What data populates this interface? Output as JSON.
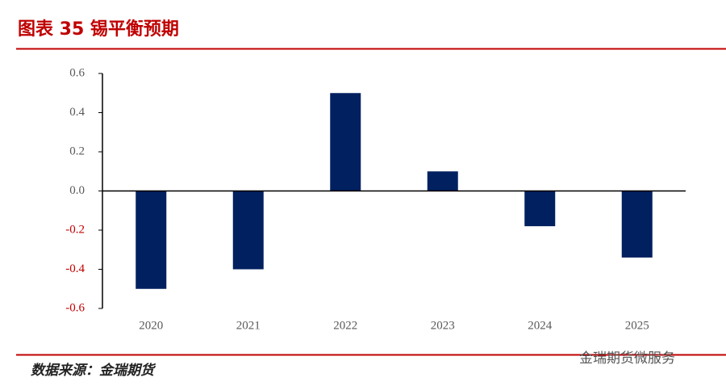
{
  "chart_data": {
    "type": "bar",
    "title": "图表 35 锡平衡预期",
    "categories": [
      "2020",
      "2021",
      "2022",
      "2023",
      "2024",
      "2025"
    ],
    "values": [
      -0.5,
      -0.4,
      0.5,
      0.1,
      -0.18,
      -0.34
    ],
    "color": "#002060",
    "ylim": [
      -0.6,
      0.6
    ],
    "yticks": [
      -0.6,
      -0.4,
      -0.2,
      {
        "value": 0,
        "label": "0.0"
      },
      0.2,
      0.4,
      0.6
    ],
    "negative_tick_color": "#c00000",
    "grid": false,
    "source": "数据来源：金瑞期货",
    "watermark": "金瑞期货微服务"
  }
}
